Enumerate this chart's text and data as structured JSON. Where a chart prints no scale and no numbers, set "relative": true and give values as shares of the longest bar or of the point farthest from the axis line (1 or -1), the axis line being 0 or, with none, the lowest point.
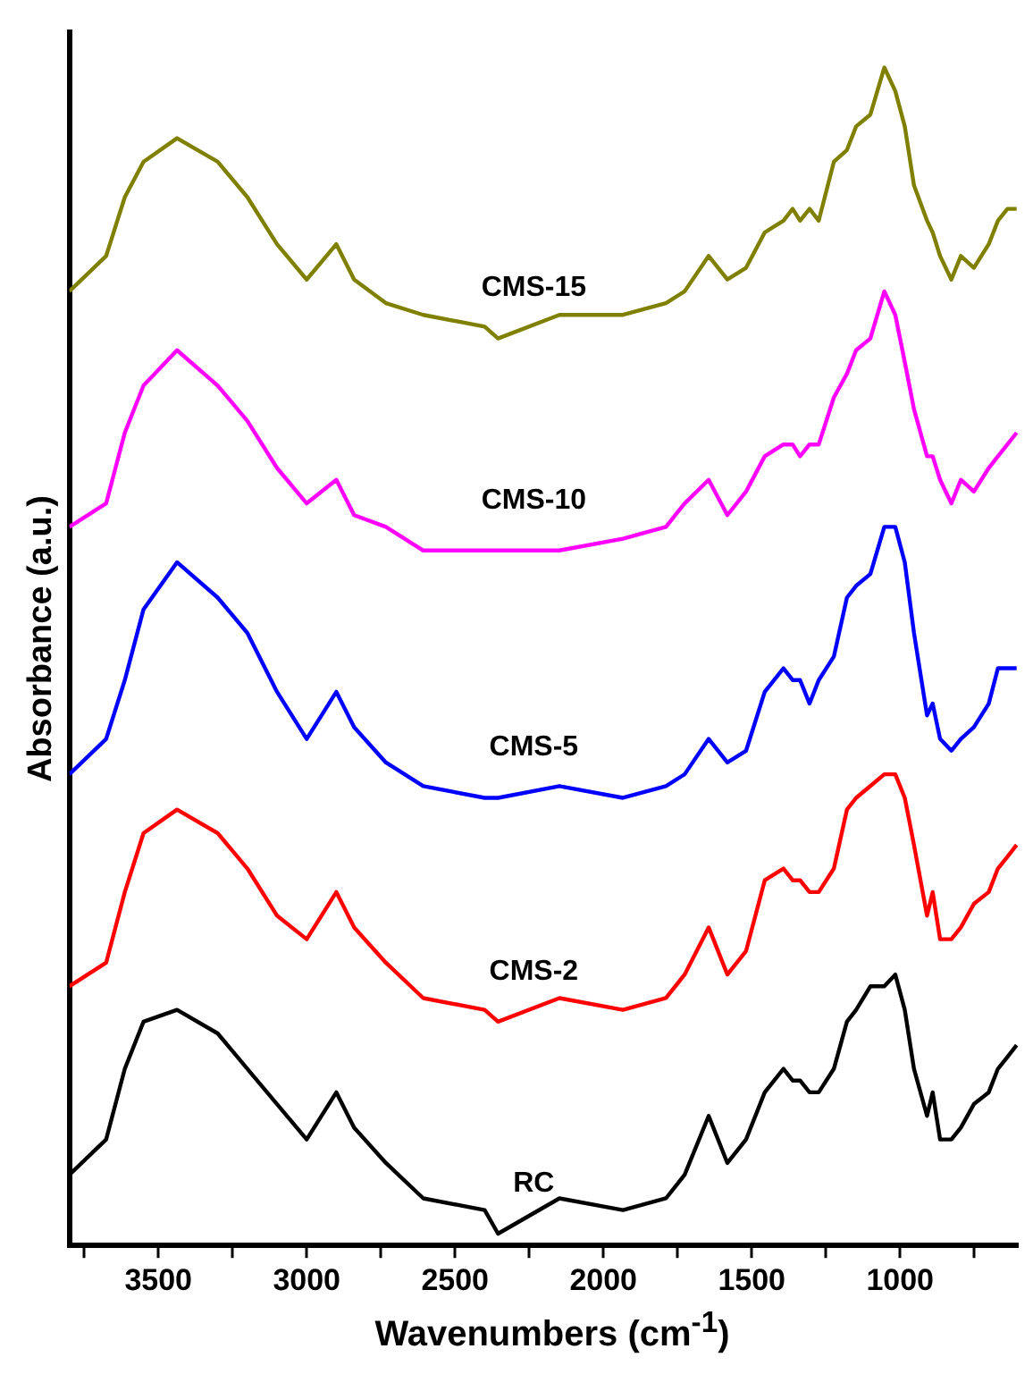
{
  "chart_data": {
    "type": "line",
    "relative": true,
    "xlabel": "Wavenumbers (cm$^{-1}$)",
    "ylabel": "Absorbance (a.u.)",
    "x": [
      3800,
      3676,
      3613,
      3550,
      3437,
      3300,
      3200,
      3100,
      3000,
      2900,
      2840,
      2733,
      2607,
      2400,
      2355,
      2148,
      1934,
      1789,
      1726,
      1645,
      1582,
      1519,
      1456,
      1393,
      1362,
      1337,
      1305,
      1274,
      1223,
      1179,
      1148,
      1100,
      1053,
      1016,
      984,
      953,
      909,
      890,
      865,
      827,
      795,
      751,
      701,
      670,
      638,
      607
    ],
    "xlim": [
      3800,
      600
    ],
    "xticks": [
      {
        "value": 3750,
        "label": null
      },
      3500,
      {
        "value": 3250,
        "label": null
      },
      3000,
      {
        "value": 2750,
        "label": null
      },
      2500,
      {
        "value": 2250,
        "label": null
      },
      2000,
      {
        "value": 1750,
        "label": null
      },
      1500,
      {
        "value": 1250,
        "label": null
      },
      1000,
      {
        "value": 750,
        "label": null
      }
    ],
    "grid": false,
    "legend": false,
    "marker": "none",
    "line_style": "solid",
    "series": [
      {
        "name": "CMS-15",
        "color": "#808000",
        "values": [
          0.81,
          0.84,
          0.89,
          0.92,
          0.94,
          0.92,
          0.89,
          0.85,
          0.82,
          0.85,
          0.82,
          0.8,
          0.79,
          0.78,
          0.77,
          0.79,
          0.79,
          0.8,
          0.81,
          0.84,
          0.82,
          0.83,
          0.86,
          0.87,
          0.88,
          0.87,
          0.88,
          0.87,
          0.92,
          0.93,
          0.95,
          0.96,
          1,
          0.98,
          0.95,
          0.9,
          0.87,
          0.86,
          0.84,
          0.82,
          0.84,
          0.83,
          0.85,
          0.87,
          0.88,
          0.88
        ]
      },
      {
        "name": "CMS-10",
        "color": "#ff00ff",
        "values": [
          0.61,
          0.63,
          0.69,
          0.73,
          0.76,
          0.73,
          0.7,
          0.66,
          0.63,
          0.65,
          0.62,
          0.61,
          0.59,
          0.59,
          0.59,
          0.59,
          0.6,
          0.61,
          0.63,
          0.65,
          0.62,
          0.64,
          0.67,
          0.68,
          0.68,
          0.67,
          0.68,
          0.68,
          0.72,
          0.74,
          0.76,
          0.77,
          0.81,
          0.79,
          0.75,
          0.71,
          0.67,
          0.67,
          0.65,
          0.63,
          0.65,
          0.64,
          0.66,
          0.67,
          0.68,
          0.69
        ]
      },
      {
        "name": "CMS-5",
        "color": "#0000ff",
        "values": [
          0.4,
          0.43,
          0.48,
          0.54,
          0.58,
          0.55,
          0.52,
          0.47,
          0.43,
          0.47,
          0.44,
          0.41,
          0.39,
          0.38,
          0.38,
          0.39,
          0.38,
          0.39,
          0.4,
          0.43,
          0.41,
          0.42,
          0.47,
          0.49,
          0.48,
          0.48,
          0.46,
          0.48,
          0.5,
          0.55,
          0.56,
          0.57,
          0.61,
          0.61,
          0.58,
          0.52,
          0.45,
          0.46,
          0.43,
          0.42,
          0.43,
          0.44,
          0.46,
          0.49,
          0.49,
          0.49
        ]
      },
      {
        "name": "CMS-2",
        "color": "#ff0000",
        "values": [
          0.22,
          0.24,
          0.3,
          0.35,
          0.37,
          0.35,
          0.32,
          0.28,
          0.26,
          0.3,
          0.27,
          0.24,
          0.21,
          0.2,
          0.19,
          0.21,
          0.2,
          0.21,
          0.23,
          0.27,
          0.23,
          0.25,
          0.31,
          0.32,
          0.31,
          0.31,
          0.3,
          0.3,
          0.32,
          0.37,
          0.38,
          0.39,
          0.4,
          0.4,
          0.38,
          0.34,
          0.28,
          0.3,
          0.26,
          0.26,
          0.27,
          0.29,
          0.3,
          0.32,
          0.33,
          0.34
        ]
      },
      {
        "name": "RC",
        "color": "#000000",
        "values": [
          0.06,
          0.09,
          0.15,
          0.19,
          0.2,
          0.18,
          0.15,
          0.12,
          0.09,
          0.13,
          0.1,
          0.07,
          0.04,
          0.03,
          0.01,
          0.04,
          0.03,
          0.04,
          0.06,
          0.11,
          0.07,
          0.09,
          0.13,
          0.15,
          0.14,
          0.14,
          0.13,
          0.13,
          0.15,
          0.19,
          0.2,
          0.22,
          0.22,
          0.23,
          0.2,
          0.15,
          0.11,
          0.13,
          0.09,
          0.09,
          0.1,
          0.12,
          0.13,
          0.15,
          0.16,
          0.17
        ]
      }
    ]
  }
}
